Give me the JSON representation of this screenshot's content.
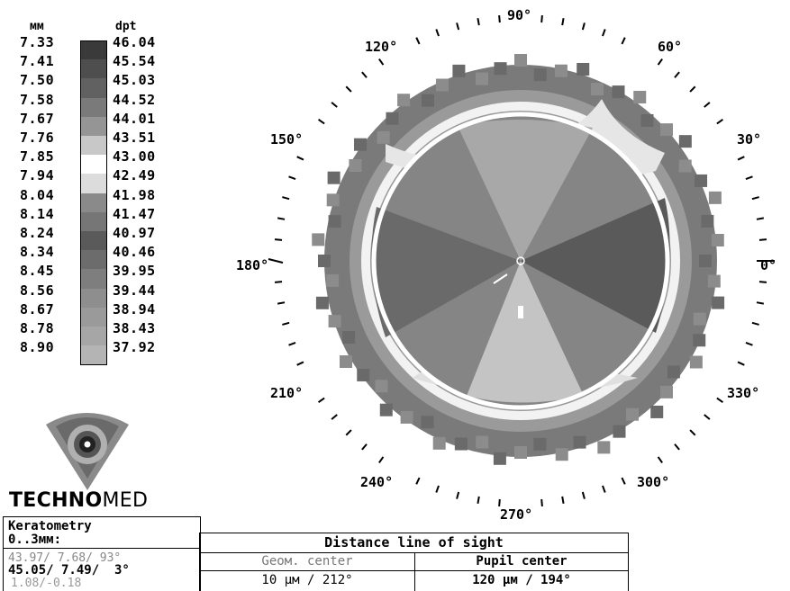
{
  "scale": {
    "mm_header": "мм",
    "dpt_header": "dpt",
    "rows": [
      {
        "mm": "7.33",
        "dpt": "46.04",
        "color": "#3a3a3a"
      },
      {
        "mm": "7.41",
        "dpt": "45.54",
        "color": "#4e4e4e"
      },
      {
        "mm": "7.50",
        "dpt": "45.03",
        "color": "#616161"
      },
      {
        "mm": "7.58",
        "dpt": "44.52",
        "color": "#7a7a7a"
      },
      {
        "mm": "7.67",
        "dpt": "44.01",
        "color": "#959595"
      },
      {
        "mm": "7.76",
        "dpt": "43.51",
        "color": "#c8c8c8"
      },
      {
        "mm": "7.85",
        "dpt": "43.00",
        "color": "#ffffff"
      },
      {
        "mm": "7.94",
        "dpt": "42.49",
        "color": "#dcdcdc"
      },
      {
        "mm": "8.04",
        "dpt": "41.98",
        "color": "#8a8a8a"
      },
      {
        "mm": "8.14",
        "dpt": "41.47",
        "color": "#767676"
      },
      {
        "mm": "8.24",
        "dpt": "40.97",
        "color": "#5a5a5a"
      },
      {
        "mm": "8.34",
        "dpt": "40.46",
        "color": "#6c6c6c"
      },
      {
        "mm": "8.45",
        "dpt": "39.95",
        "color": "#7e7e7e"
      },
      {
        "mm": "8.56",
        "dpt": "39.44",
        "color": "#8e8e8e"
      },
      {
        "mm": "8.67",
        "dpt": "38.94",
        "color": "#9a9a9a"
      },
      {
        "mm": "8.78",
        "dpt": "38.43",
        "color": "#a6a6a6"
      },
      {
        "mm": "8.90",
        "dpt": "37.92",
        "color": "#b4b4b4"
      }
    ]
  },
  "map": {
    "angle_labels": [
      "90°",
      "60°",
      "30°",
      "0°",
      "330°",
      "300°",
      "270°",
      "240°",
      "210°",
      "180°",
      "150°",
      "120°"
    ]
  },
  "logo": {
    "brand_bold": "TECHNO",
    "brand_regular": "MED"
  },
  "keratometry": {
    "title": "Keratometry",
    "range": "0..3мм:",
    "k_flat": "43.97/ 7.68/ 93°",
    "k_steep": "45.05/ 7.49/  3°",
    "delta": "1.08/-0.18"
  },
  "distance": {
    "title": "Distance line of sight",
    "geom_label": "Geoм. center",
    "geom_value": "10 μм / 212°",
    "pupil_label": "Pupil center",
    "pupil_value": "120 μм / 194°"
  }
}
